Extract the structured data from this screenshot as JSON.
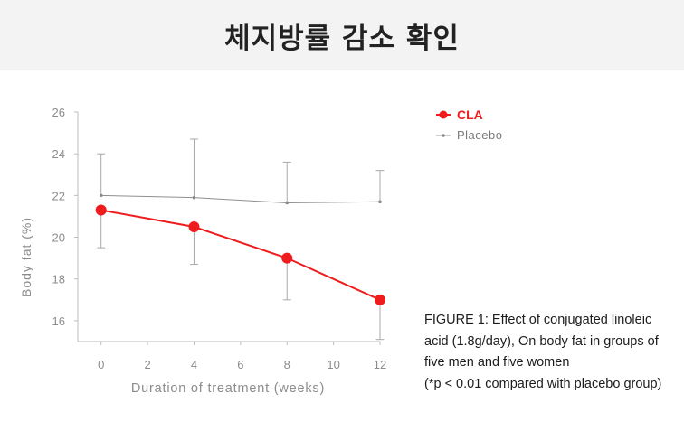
{
  "page_title": "체지방률 감소 확인",
  "chart_data": {
    "type": "line",
    "title": "",
    "xlabel": "Duration of treatment (weeks)",
    "ylabel": "Body fat (%)",
    "xlim": [
      -1,
      12
    ],
    "ylim": [
      15,
      26
    ],
    "x_ticks": [
      0,
      2,
      4,
      6,
      8,
      10,
      12
    ],
    "y_ticks": [
      16,
      18,
      20,
      22,
      24,
      26
    ],
    "grid": false,
    "legend_position": "top-right",
    "series": [
      {
        "name": "CLA",
        "color": "#ee1c1c",
        "x": [
          0,
          4,
          8,
          12
        ],
        "values": [
          21.3,
          20.5,
          19.0,
          17.0
        ],
        "error_lower": [
          19.5,
          18.7,
          17.0,
          15.1
        ]
      },
      {
        "name": "Placebo",
        "color": "#8a8a8a",
        "x": [
          0,
          4,
          8,
          12
        ],
        "values": [
          22.0,
          21.9,
          21.65,
          21.7
        ],
        "error_upper": [
          24.0,
          24.7,
          23.6,
          23.2
        ]
      }
    ]
  },
  "caption": {
    "line1": "FIGURE 1: Effect of conjugated linoleic",
    "line2": "acid (1.8g/day), On body fat in groups of",
    "line3": "five men and  five women",
    "line4": "(*p < 0.01 compared with placebo group)"
  }
}
